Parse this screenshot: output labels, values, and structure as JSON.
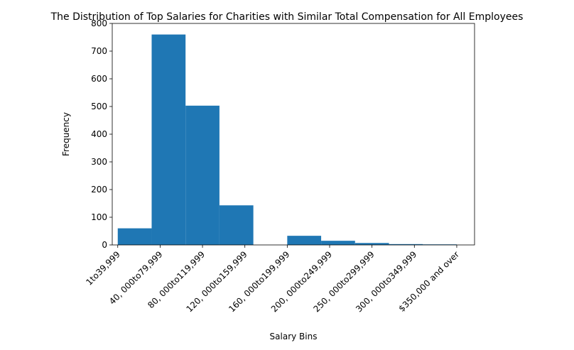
{
  "chart_data": {
    "type": "histogram",
    "title": "The Distribution of Top Salaries for Charities with Similar Total Compensation for All Employees",
    "xlabel": "Salary Bins",
    "ylabel": "Frequency",
    "bins": [
      0,
      0.8,
      1.6,
      2.4,
      3.2,
      4,
      4.8,
      5.6,
      6.4,
      7.2,
      8
    ],
    "values": [
      60,
      760,
      503,
      143,
      0,
      33,
      15,
      7,
      3,
      2
    ],
    "color": "#1f77b4",
    "xlim": [
      -0.13,
      8.42
    ],
    "xticks": [
      {
        "value": 0,
        "label": "1to39,999"
      },
      {
        "value": 1,
        "label": "40, 000to79,999"
      },
      {
        "value": 2,
        "label": "80, 000to119,999"
      },
      {
        "value": 3,
        "label": "120, 000to159,999"
      },
      {
        "value": 4,
        "label": "160, 000to199,999"
      },
      {
        "value": 5,
        "label": "200, 000to249,999"
      },
      {
        "value": 6,
        "label": "250, 000to299,999"
      },
      {
        "value": 7,
        "label": "300, 000to349,999"
      },
      {
        "value": 8,
        "label": "$350,000 and over"
      }
    ],
    "ylim": [
      0,
      800
    ],
    "yticks": [
      0,
      100,
      200,
      300,
      400,
      500,
      600,
      700,
      800
    ]
  }
}
